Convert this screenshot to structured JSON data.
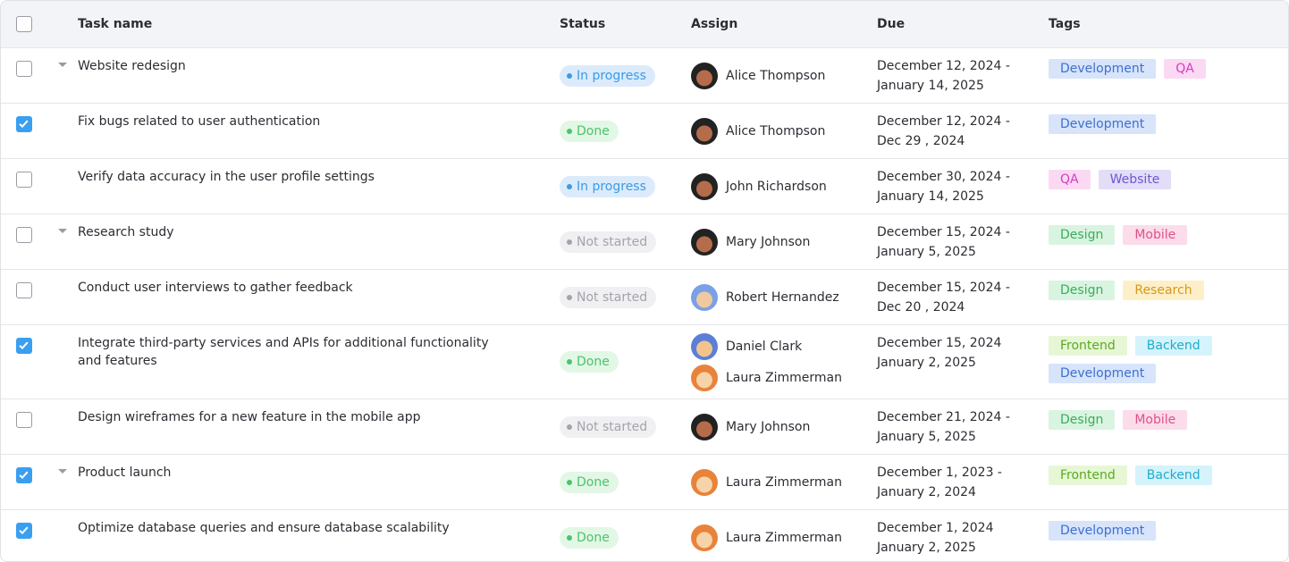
{
  "header": {
    "columns": [
      "Task name",
      "Status",
      "Assign",
      "Due",
      "Tags"
    ]
  },
  "status_styles": {
    "In progress": {
      "bg": "#dcebfb",
      "fg": "#3a9be6"
    },
    "Done": {
      "bg": "#e2f7e6",
      "fg": "#4cc46a"
    },
    "Not started": {
      "bg": "#f0f0f3",
      "fg": "#a3a3ab"
    }
  },
  "tag_styles": {
    "Development": {
      "bg": "#d7e4fa",
      "fg": "#3f6fcf"
    },
    "QA": {
      "bg": "#fbd9f3",
      "fg": "#d33dc3"
    },
    "Website": {
      "bg": "#e3ddf8",
      "fg": "#6e57d4"
    },
    "Design": {
      "bg": "#d9f4e0",
      "fg": "#3aad5c"
    },
    "Mobile": {
      "bg": "#fcdcea",
      "fg": "#e0508c"
    },
    "Research": {
      "bg": "#fdf0c9",
      "fg": "#d5981d"
    },
    "Frontend": {
      "bg": "#e7f7d5",
      "fg": "#5aa925"
    },
    "Backend": {
      "bg": "#d5f3fa",
      "fg": "#1faccf"
    }
  },
  "rows": [
    {
      "checked": false,
      "expandable": true,
      "task": "Website redesign",
      "status": "In progress",
      "assignees": [
        "Alice Thompson"
      ],
      "due": [
        "December 12, 2024 -",
        "January 14, 2025"
      ],
      "tags": [
        "Development",
        "QA"
      ]
    },
    {
      "checked": true,
      "expandable": false,
      "task": "Fix bugs related to user authentication",
      "status": "Done",
      "assignees": [
        "Alice Thompson"
      ],
      "due": [
        "December 12, 2024 -",
        "Dec 29 , 2024"
      ],
      "tags": [
        "Development"
      ]
    },
    {
      "checked": false,
      "expandable": false,
      "task": "Verify data accuracy in the user profile settings",
      "status": "In progress",
      "assignees": [
        "John Richardson"
      ],
      "due": [
        "December 30, 2024 -",
        "January 14, 2025"
      ],
      "tags": [
        "QA",
        "Website"
      ]
    },
    {
      "checked": false,
      "expandable": true,
      "task": "Research study",
      "status": "Not started",
      "assignees": [
        "Mary Johnson"
      ],
      "due": [
        "December 15, 2024 -",
        "January 5, 2025"
      ],
      "tags": [
        "Design",
        "Mobile"
      ]
    },
    {
      "checked": false,
      "expandable": false,
      "task": "Conduct user interviews to gather feedback",
      "status": "Not started",
      "assignees": [
        "Robert Hernandez"
      ],
      "due": [
        "December 15, 2024 -",
        "Dec 20 , 2024"
      ],
      "tags": [
        "Design",
        "Research"
      ]
    },
    {
      "checked": true,
      "expandable": false,
      "task": "Integrate third-party services and APIs for additional functionality and features",
      "status": "Done",
      "assignees": [
        "Daniel Clark",
        "Laura Zimmerman"
      ],
      "due": [
        "December 15, 2024",
        "January 2, 2025"
      ],
      "tags": [
        "Frontend",
        "Backend",
        "Development"
      ]
    },
    {
      "checked": false,
      "expandable": false,
      "task": "Design wireframes for a new feature in the mobile app",
      "status": "Not started",
      "assignees": [
        "Mary Johnson"
      ],
      "due": [
        "December 21, 2024 -",
        "January 5, 2025"
      ],
      "tags": [
        "Design",
        "Mobile"
      ]
    },
    {
      "checked": true,
      "expandable": true,
      "task": "Product launch",
      "status": "Done",
      "assignees": [
        "Laura Zimmerman"
      ],
      "due": [
        "December 1, 2023 -",
        "January 2, 2024"
      ],
      "tags": [
        "Frontend",
        "Backend"
      ]
    },
    {
      "checked": true,
      "expandable": false,
      "task": "Optimize database queries and ensure database scalability",
      "status": "Done",
      "assignees": [
        "Laura Zimmerman"
      ],
      "due": [
        "December 1, 2024",
        "January 2, 2025"
      ],
      "tags": [
        "Development"
      ]
    }
  ]
}
